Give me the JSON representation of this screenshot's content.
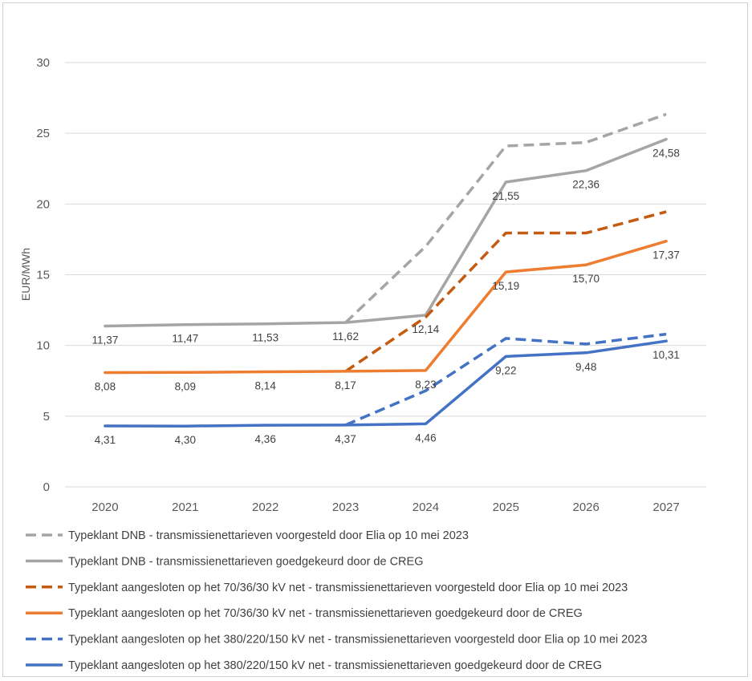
{
  "chart_data": {
    "type": "line",
    "title": "",
    "xlabel": "",
    "ylabel": "EUR/MWh",
    "ylim": [
      0,
      30
    ],
    "yticks": [
      0,
      5,
      10,
      15,
      20,
      25,
      30
    ],
    "categories": [
      "2020",
      "2021",
      "2022",
      "2023",
      "2024",
      "2025",
      "2026",
      "2027"
    ],
    "grid": true,
    "legend_position": "bottom",
    "series": [
      {
        "name": "Typeklant DNB - transmissienettarieven voorgesteld door Elia op 10 mei 2023",
        "color": "#a5a5a5",
        "dashed": true,
        "values": [
          null,
          null,
          null,
          11.62,
          17.0,
          24.1,
          24.35,
          26.35
        ]
      },
      {
        "name": "Typeklant DNB - transmissienettarieven goedgekeurd door de CREG",
        "color": "#a5a5a5",
        "dashed": false,
        "values": [
          11.37,
          11.47,
          11.53,
          11.62,
          12.14,
          21.55,
          22.36,
          24.58
        ],
        "labels": [
          "11,37",
          "11,47",
          "11,53",
          "11,62",
          "12,14",
          "21,55",
          "22,36",
          "24,58"
        ]
      },
      {
        "name": "Typeklant aangesloten op het 70/36/30 kV net - transmissienettarieven voorgesteld door Elia op 10 mei 2023",
        "color": "#c55a11",
        "dashed": true,
        "values": [
          null,
          null,
          null,
          8.17,
          12.0,
          17.95,
          17.95,
          19.45
        ]
      },
      {
        "name": "Typeklant aangesloten op het 70/36/30 kV net - transmissienettarieven goedgekeurd door de CREG",
        "color": "#ed7d31",
        "dashed": false,
        "values": [
          8.08,
          8.09,
          8.14,
          8.17,
          8.23,
          15.19,
          15.7,
          17.37
        ],
        "labels": [
          "8,08",
          "8,09",
          "8,14",
          "8,17",
          "8,23",
          "15,19",
          "15,70",
          "17,37"
        ]
      },
      {
        "name": "Typeklant aangesloten op het 380/220/150 kV net - transmissienettarieven voorgesteld door Elia op 10 mei 2023",
        "color": "#4472c4",
        "dashed": true,
        "values": [
          null,
          null,
          null,
          4.37,
          6.8,
          10.5,
          10.1,
          10.8
        ]
      },
      {
        "name": "Typeklant aangesloten op het 380/220/150 kV net - transmissienettarieven goedgekeurd door de CREG",
        "color": "#4472c4",
        "dashed": false,
        "values": [
          4.31,
          4.3,
          4.36,
          4.37,
          4.46,
          9.22,
          9.48,
          10.31
        ],
        "labels": [
          "4,31",
          "4,30",
          "4,36",
          "4,37",
          "4,46",
          "9,22",
          "9,48",
          "10,31"
        ]
      }
    ]
  }
}
